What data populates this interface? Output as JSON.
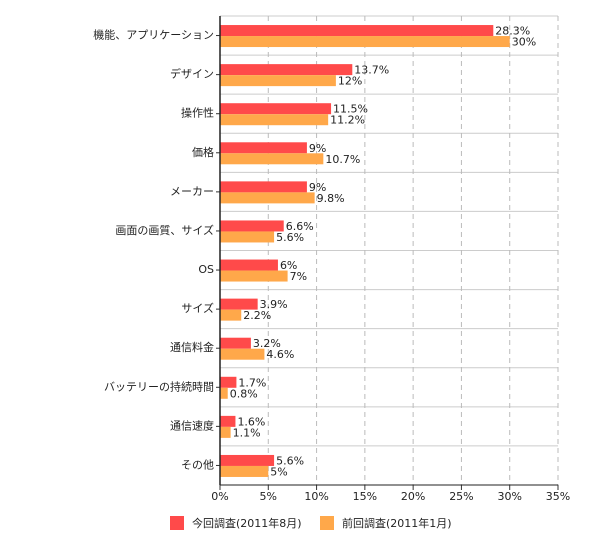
{
  "chart_data": {
    "type": "bar",
    "orientation": "horizontal",
    "categories": [
      "機能、アプリケーション",
      "デザイン",
      "操作性",
      "価格",
      "メーカー",
      "画面の画質、サイズ",
      "OS",
      "サイズ",
      "通信料金",
      "バッテリーの持続時間",
      "通信速度",
      "その他"
    ],
    "series": [
      {
        "name": "今回調査(2011年8月)",
        "color": "#ff4a4a",
        "values": [
          28.3,
          13.7,
          11.5,
          9,
          9,
          6.6,
          6,
          3.9,
          3.2,
          1.7,
          1.6,
          5.6
        ],
        "value_labels": [
          "28.3%",
          "13.7%",
          "11.5%",
          "9%",
          "9%",
          "6.6%",
          "6%",
          "3.9%",
          "3.2%",
          "1.7%",
          "1.6%",
          "5.6%"
        ]
      },
      {
        "name": "前回調査(2011年1月)",
        "color": "#ffa84a",
        "values": [
          30,
          12,
          11.2,
          10.7,
          9.8,
          5.6,
          7,
          2.2,
          4.6,
          0.8,
          1.1,
          5
        ],
        "value_labels": [
          "30%",
          "12%",
          "11.2%",
          "10.7%",
          "9.8%",
          "5.6%",
          "7%",
          "2.2%",
          "4.6%",
          "0.8%",
          "1.1%",
          "5%"
        ]
      }
    ],
    "xlim": [
      0,
      35
    ],
    "xticks": [
      {
        "value": 0,
        "label": "0%"
      },
      {
        "value": 5,
        "label": "5%"
      },
      {
        "value": 10,
        "label": "10%"
      },
      {
        "value": 15,
        "label": "15%"
      },
      {
        "value": 20,
        "label": "20%"
      },
      {
        "value": 25,
        "label": "25%"
      },
      {
        "value": 30,
        "label": "30%"
      },
      {
        "value": 35,
        "label": "35%"
      }
    ],
    "grid": true
  }
}
